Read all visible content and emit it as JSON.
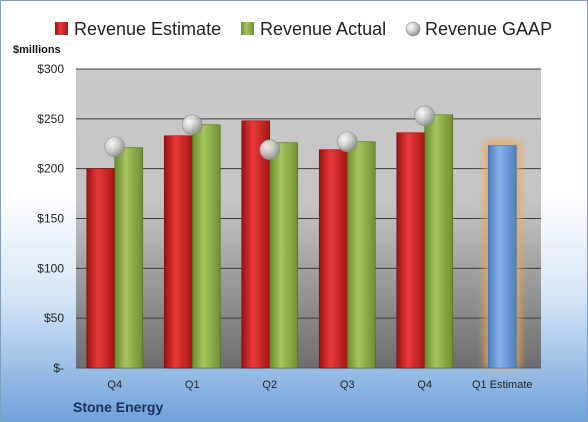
{
  "chart_data": {
    "type": "bar",
    "unit_label": "$millions",
    "company": "Stone Energy",
    "categories": [
      "Q4",
      "Q1",
      "Q2",
      "Q3",
      "Q4",
      "Q1 Estimate"
    ],
    "y_ticks": [
      {
        "value": 0,
        "label": "$-"
      },
      {
        "value": 50,
        "label": "$50"
      },
      {
        "value": 100,
        "label": "$100"
      },
      {
        "value": 150,
        "label": "$150"
      },
      {
        "value": 200,
        "label": "$200"
      },
      {
        "value": 250,
        "label": "$250"
      },
      {
        "value": 300,
        "label": "$300"
      }
    ],
    "ylim": [
      0,
      300
    ],
    "grid": true,
    "legend_position": "top",
    "series": [
      {
        "name": "Revenue Estimate",
        "kind": "bar",
        "color": "#d42424",
        "values": [
          200,
          233,
          248,
          219,
          236,
          null
        ]
      },
      {
        "name": "Revenue Actual",
        "kind": "bar",
        "color": "#8fb14c",
        "values": [
          221,
          244,
          226,
          227,
          254,
          null
        ]
      },
      {
        "name": "Revenue GAAP",
        "kind": "marker",
        "color": "#c8c8c8",
        "values": [
          222,
          244,
          219,
          227,
          253,
          null
        ]
      }
    ],
    "estimate_bar": {
      "category_index": 5,
      "value": 223,
      "color": "#6f9fd8",
      "glow": "#f3a64a"
    }
  }
}
